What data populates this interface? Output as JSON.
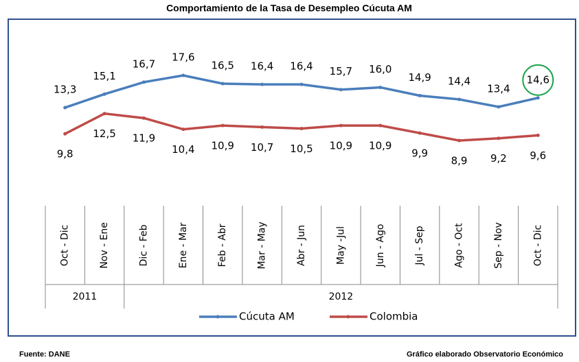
{
  "chart_data": {
    "type": "line",
    "title": "Comportamiento de la Tasa de Desempleo Cúcuta AM",
    "categories": [
      "Oct - Dic",
      "Nov - Ene",
      "Dic - Feb",
      "Ene - Mar",
      "Feb - Abr",
      "Mar - May",
      "Abr - Jun",
      "May -Jul",
      "Jun - Ago",
      "Jul - Sep",
      "Ago - Oct",
      "Sep - Nov",
      "Oct - Dic"
    ],
    "x_groups": [
      "2011",
      null,
      "2012",
      null,
      null,
      null,
      null,
      null,
      null,
      null,
      null,
      null,
      null
    ],
    "series": [
      {
        "name": "Cúcuta AM",
        "color": "#4a7ebb",
        "values": [
          13.3,
          15.1,
          16.7,
          17.6,
          16.5,
          16.4,
          16.4,
          15.7,
          16.0,
          14.9,
          14.4,
          13.4,
          14.6
        ],
        "value_labels": [
          "13,3",
          "15,1",
          "16,7",
          "17,6",
          "16,5",
          "16,4",
          "16,4",
          "15,7",
          "16,0",
          "14,9",
          "14,4",
          "13,4",
          "14,6"
        ]
      },
      {
        "name": "Colombia",
        "color": "#be4b48",
        "values": [
          9.8,
          12.5,
          11.9,
          10.4,
          10.9,
          10.7,
          10.5,
          10.9,
          10.9,
          9.9,
          8.9,
          9.2,
          9.6
        ],
        "value_labels": [
          "9,8",
          "12,5",
          "11,9",
          "10,4",
          "10,9",
          "10,7",
          "10,5",
          "10,9",
          "10,9",
          "9,9",
          "8,9",
          "9,2",
          "9,6"
        ]
      }
    ],
    "legend": "bottom",
    "source": "Fuente: DANE",
    "credit": "Gráfico elaborado Observatorio Económico"
  }
}
